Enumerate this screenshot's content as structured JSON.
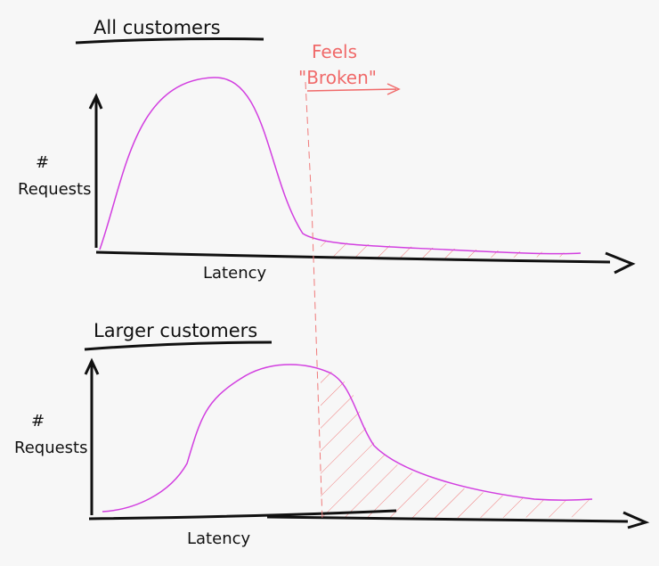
{
  "panels": [
    {
      "title": "All customers",
      "y_label_symbol": "#",
      "y_label": "Requests",
      "x_label": "Latency"
    },
    {
      "title": "Larger customers",
      "y_label_symbol": "#",
      "y_label": "Requests",
      "x_label": "Latency"
    }
  ],
  "annotation": {
    "lines": [
      "Feels",
      "\"Broken\""
    ]
  }
}
